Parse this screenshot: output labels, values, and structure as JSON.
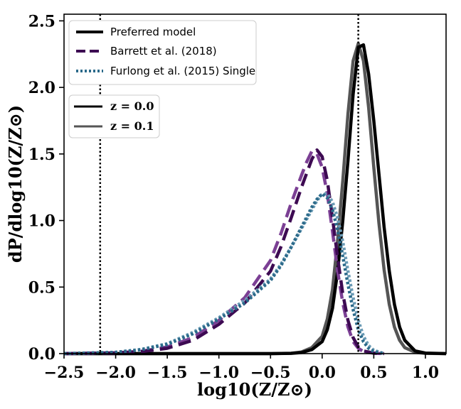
{
  "chart_data": {
    "type": "line",
    "xlabel": "log10(Z/Z⊙)",
    "ylabel": "dP/dlog10(Z/Z⊙)",
    "xlim": [
      -2.5,
      1.2
    ],
    "ylim": [
      0,
      2.55
    ],
    "xticks": [
      -2.5,
      -2.0,
      -1.5,
      -1.0,
      -0.5,
      0.0,
      0.5,
      1.0
    ],
    "xtick_labels": [
      "−2.5",
      "−2.0",
      "−1.5",
      "−1.0",
      "−0.5",
      "0.0",
      "0.5",
      "1.0"
    ],
    "yticks": [
      0.0,
      0.5,
      1.0,
      1.5,
      2.0,
      2.5
    ],
    "ytick_labels": [
      "0.0",
      "0.5",
      "1.0",
      "1.5",
      "2.0",
      "2.5"
    ],
    "vlines": [
      -2.15,
      0.35
    ],
    "grid": false,
    "legend_models": {
      "placement": "upper-left",
      "entries": [
        {
          "label": "Preferred model",
          "color": "#000000",
          "style": "solid"
        },
        {
          "label": "Barrett et al. (2018)",
          "color": "#3d0a52",
          "style": "dashed"
        },
        {
          "label": "Furlong et al. (2015) Single",
          "color": "#2b6a8a",
          "style": "dotted"
        }
      ]
    },
    "legend_redshift": {
      "placement": "upper-left",
      "entries": [
        {
          "label": "z = 0.0",
          "color": "#000000"
        },
        {
          "label": "z = 0.1",
          "color": "#555555"
        }
      ]
    },
    "series": [
      {
        "model": "Preferred model",
        "z": "0.0",
        "color": "#000000",
        "style": "solid",
        "x": [
          -2.5,
          -0.5,
          -0.3,
          -0.2,
          -0.1,
          0.0,
          0.05,
          0.1,
          0.15,
          0.2,
          0.25,
          0.3,
          0.35,
          0.4,
          0.45,
          0.5,
          0.55,
          0.6,
          0.65,
          0.7,
          0.75,
          0.8,
          0.9,
          1.0,
          1.2
        ],
        "y": [
          0,
          0,
          0.002,
          0.008,
          0.03,
          0.09,
          0.18,
          0.34,
          0.62,
          1.0,
          1.45,
          1.95,
          2.3,
          2.32,
          2.1,
          1.75,
          1.35,
          0.95,
          0.62,
          0.37,
          0.2,
          0.1,
          0.02,
          0.004,
          0
        ]
      },
      {
        "model": "Preferred model",
        "z": "0.1",
        "color": "#555555",
        "style": "solid",
        "x": [
          -2.5,
          -0.5,
          -0.3,
          -0.2,
          -0.1,
          0.0,
          0.05,
          0.1,
          0.15,
          0.2,
          0.25,
          0.3,
          0.35,
          0.4,
          0.45,
          0.5,
          0.55,
          0.6,
          0.65,
          0.7,
          0.75,
          0.8,
          0.9,
          1.0,
          1.2
        ],
        "y": [
          0,
          0,
          0.003,
          0.012,
          0.045,
          0.13,
          0.26,
          0.48,
          0.85,
          1.3,
          1.8,
          2.2,
          2.33,
          2.2,
          1.85,
          1.4,
          0.98,
          0.63,
          0.37,
          0.2,
          0.1,
          0.045,
          0.01,
          0.002,
          0
        ]
      },
      {
        "model": "Barrett et al. (2018)",
        "z": "0.0",
        "color": "#3d0a52",
        "style": "dashed",
        "x": [
          -2.5,
          -2.0,
          -1.75,
          -1.5,
          -1.25,
          -1.0,
          -0.75,
          -0.5,
          -0.4,
          -0.3,
          -0.2,
          -0.1,
          -0.05,
          0.0,
          0.05,
          0.1,
          0.15,
          0.2,
          0.25,
          0.3,
          0.35,
          0.4,
          0.5,
          0.6
        ],
        "y": [
          0,
          0.005,
          0.015,
          0.04,
          0.1,
          0.22,
          0.38,
          0.62,
          0.8,
          1.02,
          1.25,
          1.46,
          1.53,
          1.48,
          1.3,
          1.02,
          0.72,
          0.45,
          0.25,
          0.12,
          0.05,
          0.02,
          0.004,
          0
        ]
      },
      {
        "model": "Barrett et al. (2018)",
        "z": "0.1",
        "color": "#7b3f94",
        "style": "dashed",
        "x": [
          -2.5,
          -2.0,
          -1.75,
          -1.5,
          -1.25,
          -1.0,
          -0.75,
          -0.5,
          -0.4,
          -0.3,
          -0.2,
          -0.15,
          -0.1,
          -0.05,
          0.0,
          0.05,
          0.1,
          0.15,
          0.2,
          0.25,
          0.3,
          0.35,
          0.4,
          0.5,
          0.6
        ],
        "y": [
          0,
          0.006,
          0.018,
          0.05,
          0.12,
          0.25,
          0.42,
          0.7,
          0.9,
          1.13,
          1.34,
          1.44,
          1.52,
          1.5,
          1.4,
          1.2,
          0.92,
          0.62,
          0.38,
          0.2,
          0.09,
          0.04,
          0.015,
          0.003,
          0
        ]
      },
      {
        "model": "Furlong et al. (2015) Single",
        "z": "0.0",
        "color": "#2b6a8a",
        "style": "dotted",
        "x": [
          -2.5,
          -2.0,
          -1.75,
          -1.5,
          -1.25,
          -1.0,
          -0.75,
          -0.5,
          -0.4,
          -0.3,
          -0.2,
          -0.1,
          -0.05,
          0.0,
          0.05,
          0.1,
          0.15,
          0.2,
          0.25,
          0.3,
          0.35,
          0.4,
          0.45,
          0.5,
          0.6
        ],
        "y": [
          0,
          0.01,
          0.03,
          0.07,
          0.15,
          0.26,
          0.38,
          0.55,
          0.66,
          0.8,
          0.95,
          1.1,
          1.16,
          1.2,
          1.17,
          1.08,
          0.93,
          0.73,
          0.52,
          0.33,
          0.18,
          0.09,
          0.04,
          0.015,
          0
        ]
      },
      {
        "model": "Furlong et al. (2015) Single",
        "z": "0.1",
        "color": "#6b9bb5",
        "style": "dotted",
        "x": [
          -2.5,
          -2.0,
          -1.75,
          -1.5,
          -1.25,
          -1.0,
          -0.75,
          -0.5,
          -0.4,
          -0.3,
          -0.2,
          -0.1,
          -0.05,
          0.0,
          0.05,
          0.1,
          0.15,
          0.2,
          0.25,
          0.3,
          0.35,
          0.4,
          0.45,
          0.5,
          0.6
        ],
        "y": [
          0,
          0.01,
          0.032,
          0.075,
          0.16,
          0.27,
          0.4,
          0.56,
          0.67,
          0.8,
          0.94,
          1.08,
          1.15,
          1.2,
          1.2,
          1.14,
          1.02,
          0.84,
          0.62,
          0.42,
          0.25,
          0.13,
          0.06,
          0.025,
          0
        ]
      }
    ]
  }
}
